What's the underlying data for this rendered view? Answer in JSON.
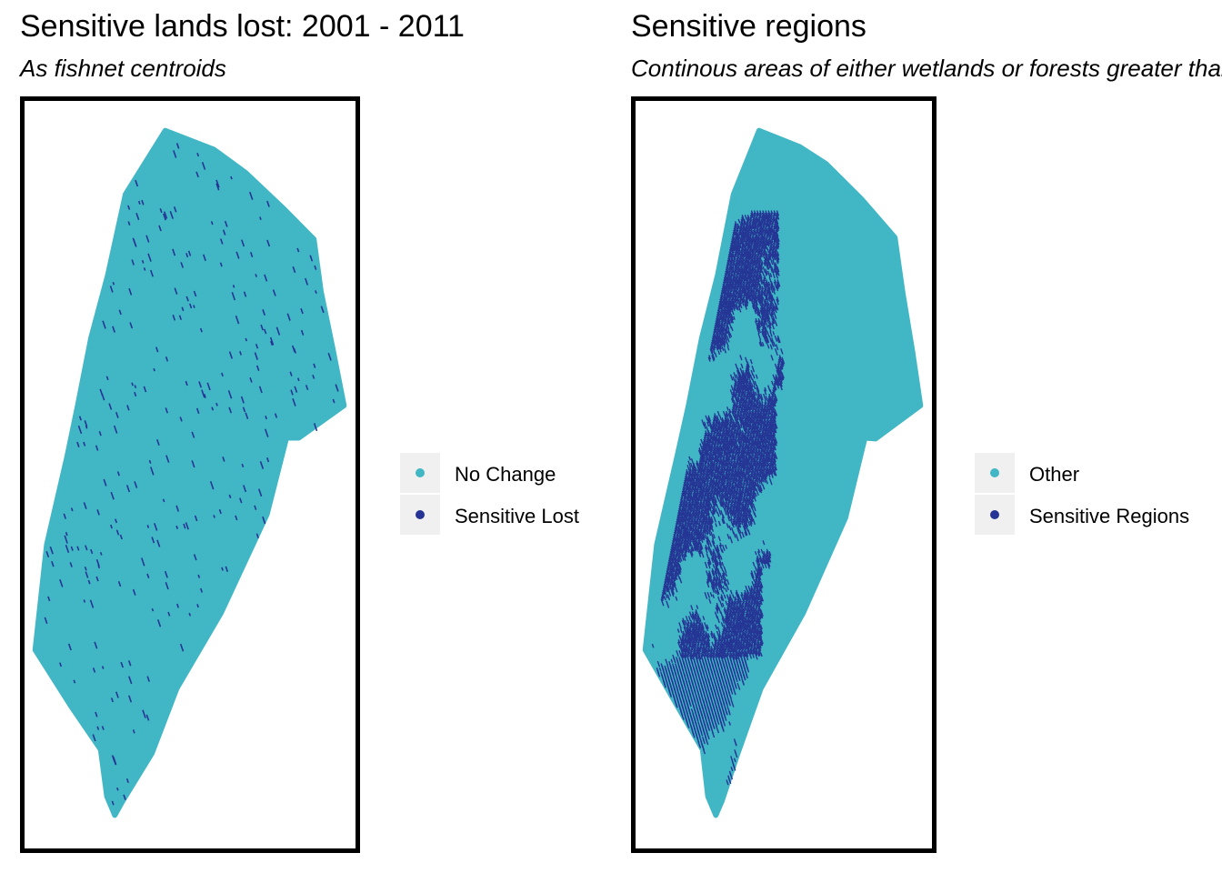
{
  "colors": {
    "no_change": "#41b6c4",
    "sensitive": "#253494",
    "frame": "#000000"
  },
  "panels": [
    {
      "title": "Sensitive lands lost: 2001 - 2011",
      "subtitle": "As fishnet centroids",
      "legend": [
        {
          "label": "No Change",
          "color": "#41b6c4"
        },
        {
          "label": "Sensitive Lost",
          "color": "#253494"
        }
      ]
    },
    {
      "title": "Sensitive regions",
      "subtitle": "Continous areas of either wetlands or forests greater than",
      "legend": [
        {
          "label": "Other",
          "color": "#41b6c4"
        },
        {
          "label": "Sensitive Regions",
          "color": "#253494"
        }
      ]
    }
  ]
}
